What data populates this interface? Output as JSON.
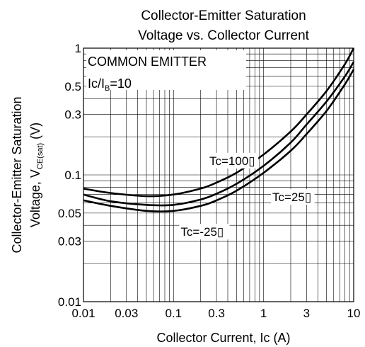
{
  "chart_data": {
    "type": "line",
    "title_line1": "Collector-Emitter Saturation",
    "title_line2": "Voltage vs. Collector Current",
    "xlabel": "Collector Current, Ic (A)",
    "ylabel_line1": "Collector-Emitter Saturation",
    "ylabel_prefix": "Voltage, V",
    "ylabel_sub": "CE(sat)",
    "ylabel_unit": " (V)",
    "x_scale": "log",
    "y_scale": "log",
    "xlim": [
      0.01,
      10
    ],
    "ylim": [
      0.01,
      1
    ],
    "grid": true,
    "x_ticks": [
      0.01,
      0.03,
      0.1,
      0.3,
      1,
      3,
      10
    ],
    "x_tick_labels": [
      "0.01",
      "0.03",
      "0.1",
      "0.3",
      "1",
      "3",
      "10"
    ],
    "y_ticks": [
      0.01,
      0.03,
      0.05,
      0.1,
      0.3,
      0.5,
      1
    ],
    "y_tick_labels": [
      "0.01",
      "0.03",
      "0.05",
      "0.1",
      "0.3",
      "0.5",
      "1"
    ],
    "condition_line1": "COMMON EMITTER",
    "condition_line2_prefix": "Ic/I",
    "condition_line2_sub": "B",
    "condition_line2_suffix": "=10",
    "series": [
      {
        "name": "Tc=100▯",
        "x": [
          0.01,
          0.02,
          0.05,
          0.1,
          0.2,
          0.3,
          0.5,
          1,
          2,
          3,
          5,
          8,
          10
        ],
        "y": [
          0.078,
          0.072,
          0.068,
          0.07,
          0.078,
          0.087,
          0.104,
          0.145,
          0.22,
          0.3,
          0.46,
          0.75,
          1.0
        ]
      },
      {
        "name": "Tc=25▯",
        "x": [
          0.01,
          0.02,
          0.05,
          0.1,
          0.2,
          0.3,
          0.5,
          1,
          2,
          3,
          5,
          8,
          10
        ],
        "y": [
          0.07,
          0.062,
          0.058,
          0.058,
          0.064,
          0.071,
          0.085,
          0.118,
          0.18,
          0.25,
          0.38,
          0.6,
          0.78
        ]
      },
      {
        "name": "Tc=-25▯",
        "x": [
          0.01,
          0.02,
          0.05,
          0.1,
          0.2,
          0.3,
          0.5,
          1,
          2,
          3,
          5,
          8,
          10
        ],
        "y": [
          0.063,
          0.057,
          0.052,
          0.052,
          0.057,
          0.063,
          0.075,
          0.104,
          0.155,
          0.21,
          0.32,
          0.52,
          0.68
        ]
      }
    ],
    "series_label_anchor": [
      {
        "x": 0.25,
        "y": 0.12
      },
      {
        "x": 1.25,
        "y": 0.062
      },
      {
        "x": 0.12,
        "y": 0.033
      }
    ]
  }
}
